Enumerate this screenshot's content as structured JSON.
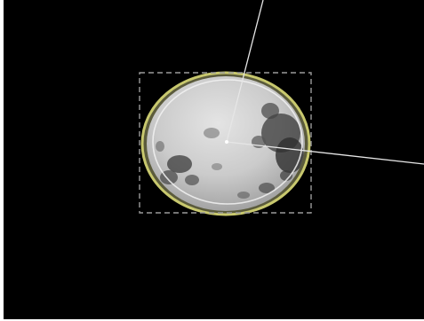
{
  "scene": {
    "background_color": "#000000",
    "frame_border_color": "#ffffff",
    "object": "circular-specimen",
    "specimen_rim_color": "#c8c86e",
    "specimen_surface_color": "#cfcfcf",
    "specimen_inner_ring_color": "#f2f2f2",
    "selection_box_style": "dashed",
    "selection_box_color": "#9a9a9a",
    "overlay_line_color": "#e6e6e6"
  }
}
